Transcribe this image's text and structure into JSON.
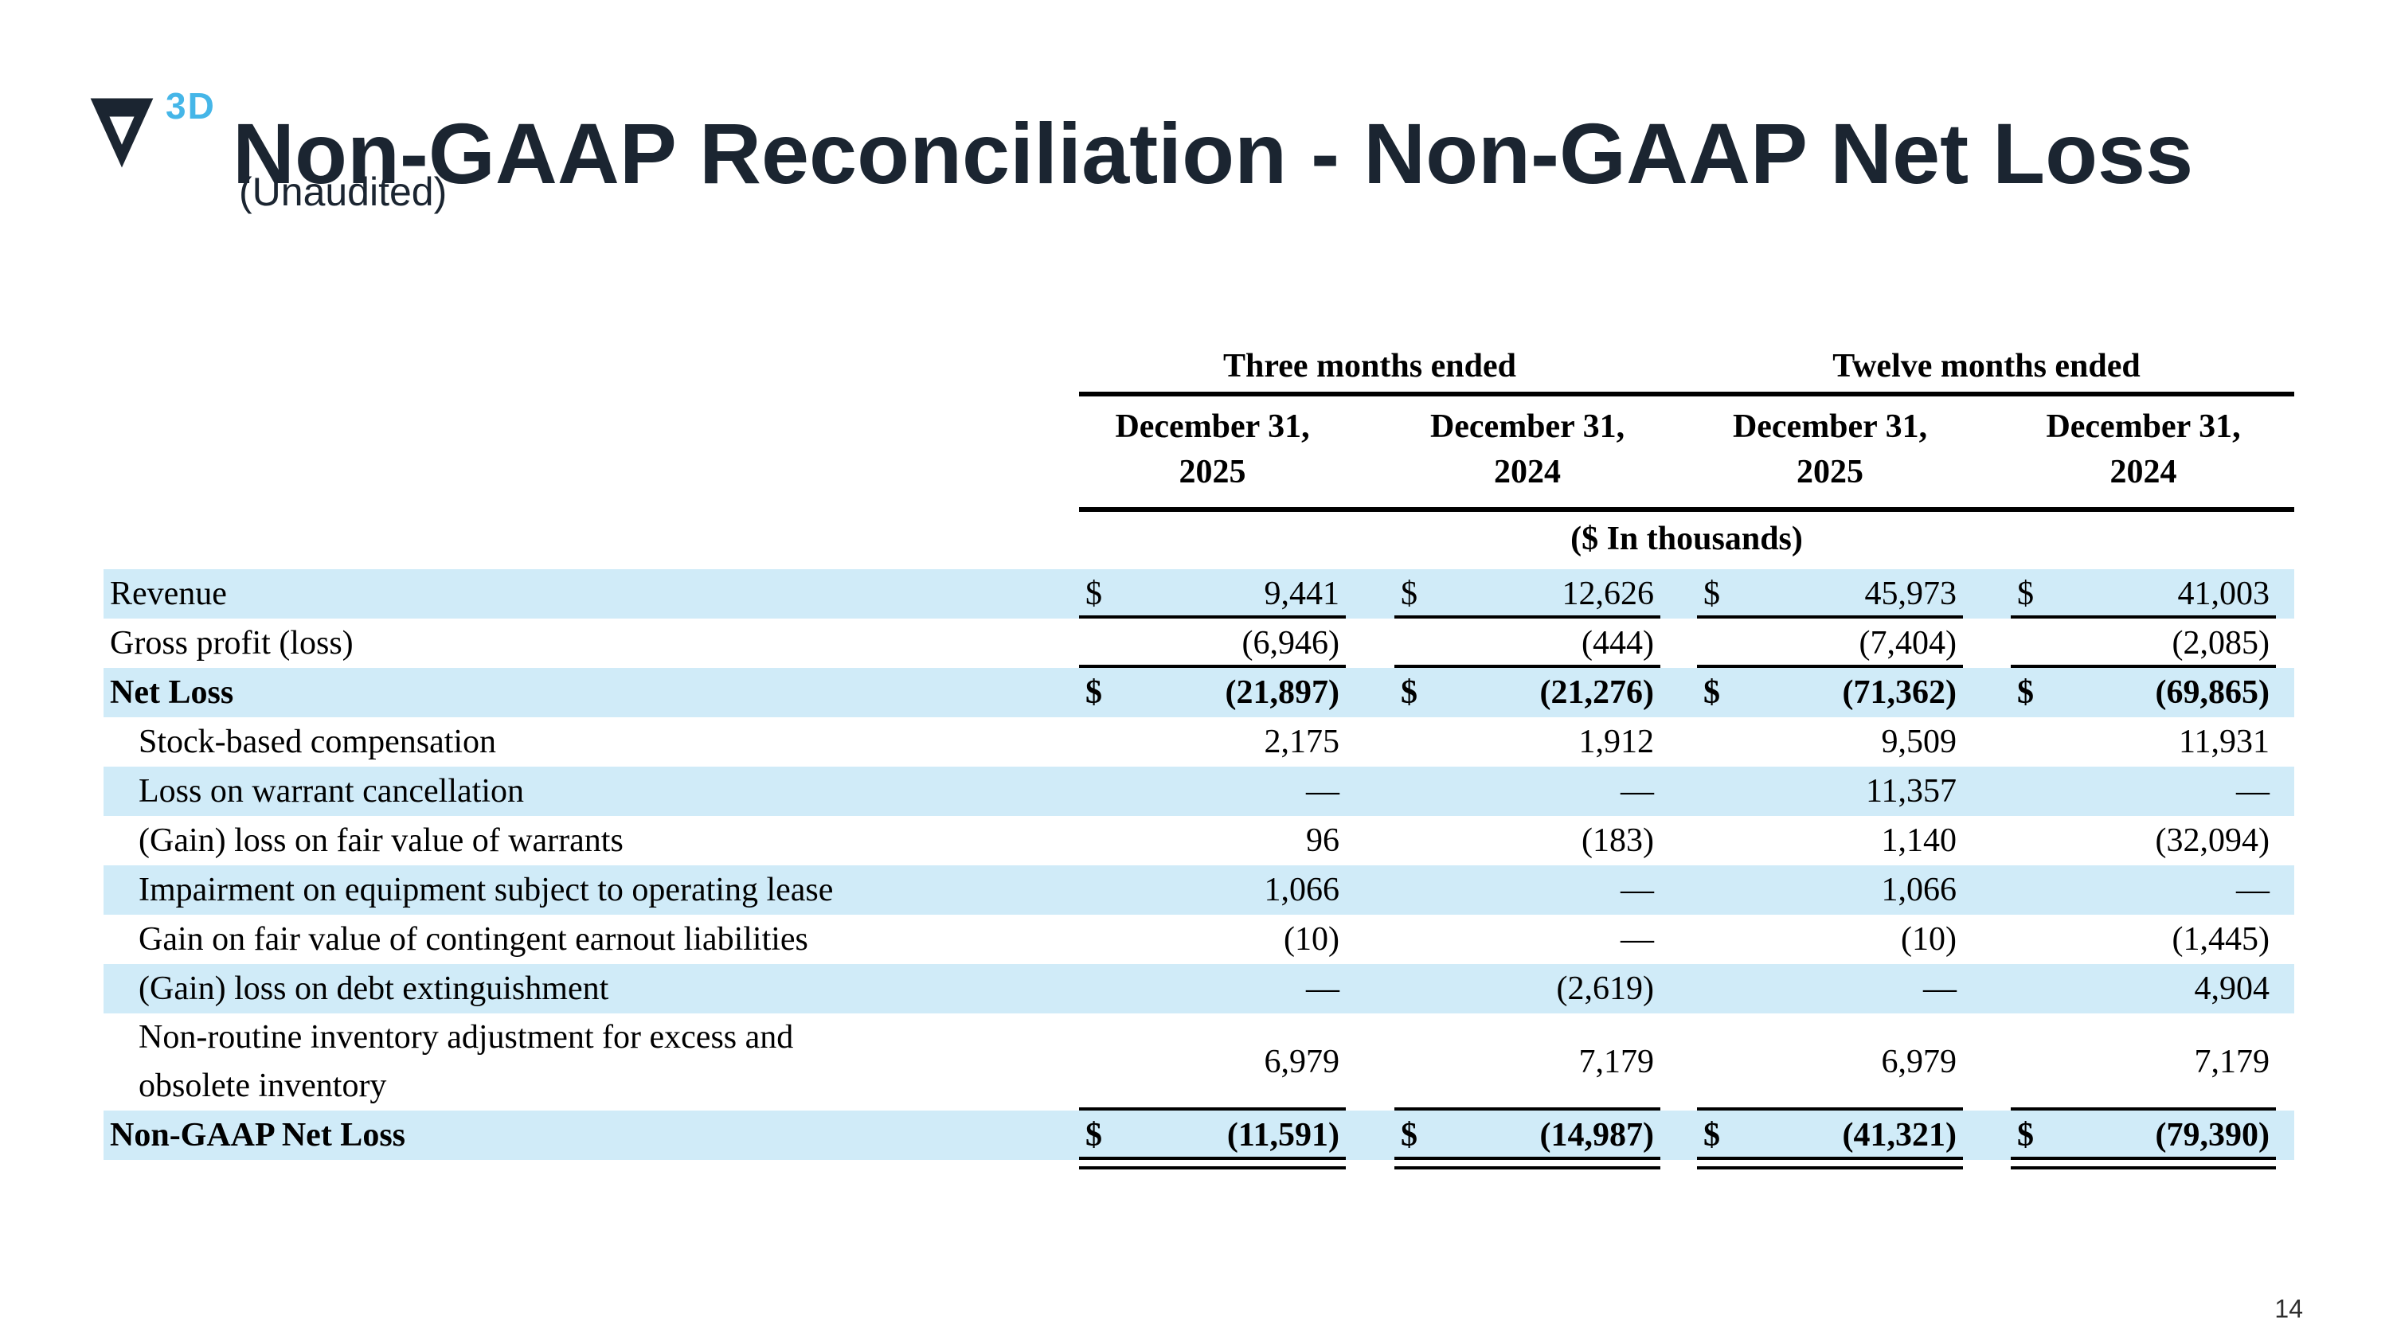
{
  "header": {
    "logo_3d_label": "3D",
    "title": "Non-GAAP Reconciliation - Non-GAAP Net Loss",
    "subtitle": "(Unaudited)"
  },
  "footer": {
    "page_number": "14"
  },
  "colors": {
    "accent_blue": "#45b6e8",
    "stripe_blue": "#d0ebf8",
    "title_navy": "#1b2531"
  },
  "table": {
    "group_headers": [
      {
        "label": "Three months ended"
      },
      {
        "label": "Twelve months ended"
      }
    ],
    "column_headers": [
      "December 31,\n2025",
      "December 31,\n2024",
      "December 31,\n2025",
      "December 31,\n2024"
    ],
    "units_note": "($ In thousands)",
    "rows": [
      {
        "label": "Revenue",
        "indent": false,
        "bold": false,
        "dollar": true,
        "shaded": true,
        "underline": "single",
        "values": [
          "9,441",
          "12,626",
          "45,973",
          "41,003"
        ]
      },
      {
        "label": "Gross profit (loss)",
        "indent": false,
        "bold": false,
        "dollar": false,
        "shaded": false,
        "underline": "single",
        "values": [
          "(6,946)",
          "(444)",
          "(7,404)",
          "(2,085)"
        ]
      },
      {
        "label": "Net Loss",
        "indent": false,
        "bold": true,
        "dollar": true,
        "shaded": true,
        "underline": "none",
        "values": [
          "(21,897)",
          "(21,276)",
          "(71,362)",
          "(69,865)"
        ]
      },
      {
        "label": "Stock-based compensation",
        "indent": true,
        "bold": false,
        "dollar": false,
        "shaded": false,
        "underline": "none",
        "values": [
          "2,175",
          "1,912",
          "9,509",
          "11,931"
        ]
      },
      {
        "label": "Loss on warrant cancellation",
        "indent": true,
        "bold": false,
        "dollar": false,
        "shaded": true,
        "underline": "none",
        "values": [
          "—",
          "—",
          "11,357",
          "—"
        ]
      },
      {
        "label": "(Gain) loss on fair value of warrants",
        "indent": true,
        "bold": false,
        "dollar": false,
        "shaded": false,
        "underline": "none",
        "values": [
          "96",
          "(183)",
          "1,140",
          "(32,094)"
        ]
      },
      {
        "label": "Impairment on equipment subject to operating lease",
        "indent": true,
        "bold": false,
        "dollar": false,
        "shaded": true,
        "underline": "none",
        "values": [
          "1,066",
          "—",
          "1,066",
          "—"
        ]
      },
      {
        "label": "Gain on fair value of contingent earnout liabilities",
        "indent": true,
        "bold": false,
        "dollar": false,
        "shaded": false,
        "underline": "none",
        "values": [
          "(10)",
          "—",
          "(10)",
          "(1,445)"
        ]
      },
      {
        "label": "(Gain) loss on debt extinguishment",
        "indent": true,
        "bold": false,
        "dollar": false,
        "shaded": true,
        "underline": "none",
        "values": [
          "—",
          "(2,619)",
          "—",
          "4,904"
        ]
      },
      {
        "label": "Non-routine inventory adjustment for excess and\nobsolete inventory",
        "indent": true,
        "bold": false,
        "dollar": false,
        "shaded": false,
        "underline": "single",
        "values": [
          "6,979",
          "7,179",
          "6,979",
          "7,179"
        ]
      },
      {
        "label": "Non-GAAP Net Loss",
        "indent": false,
        "bold": true,
        "dollar": true,
        "shaded": true,
        "underline": "double",
        "values": [
          "(11,591)",
          "(14,987)",
          "(41,321)",
          "(79,390)"
        ]
      }
    ]
  }
}
